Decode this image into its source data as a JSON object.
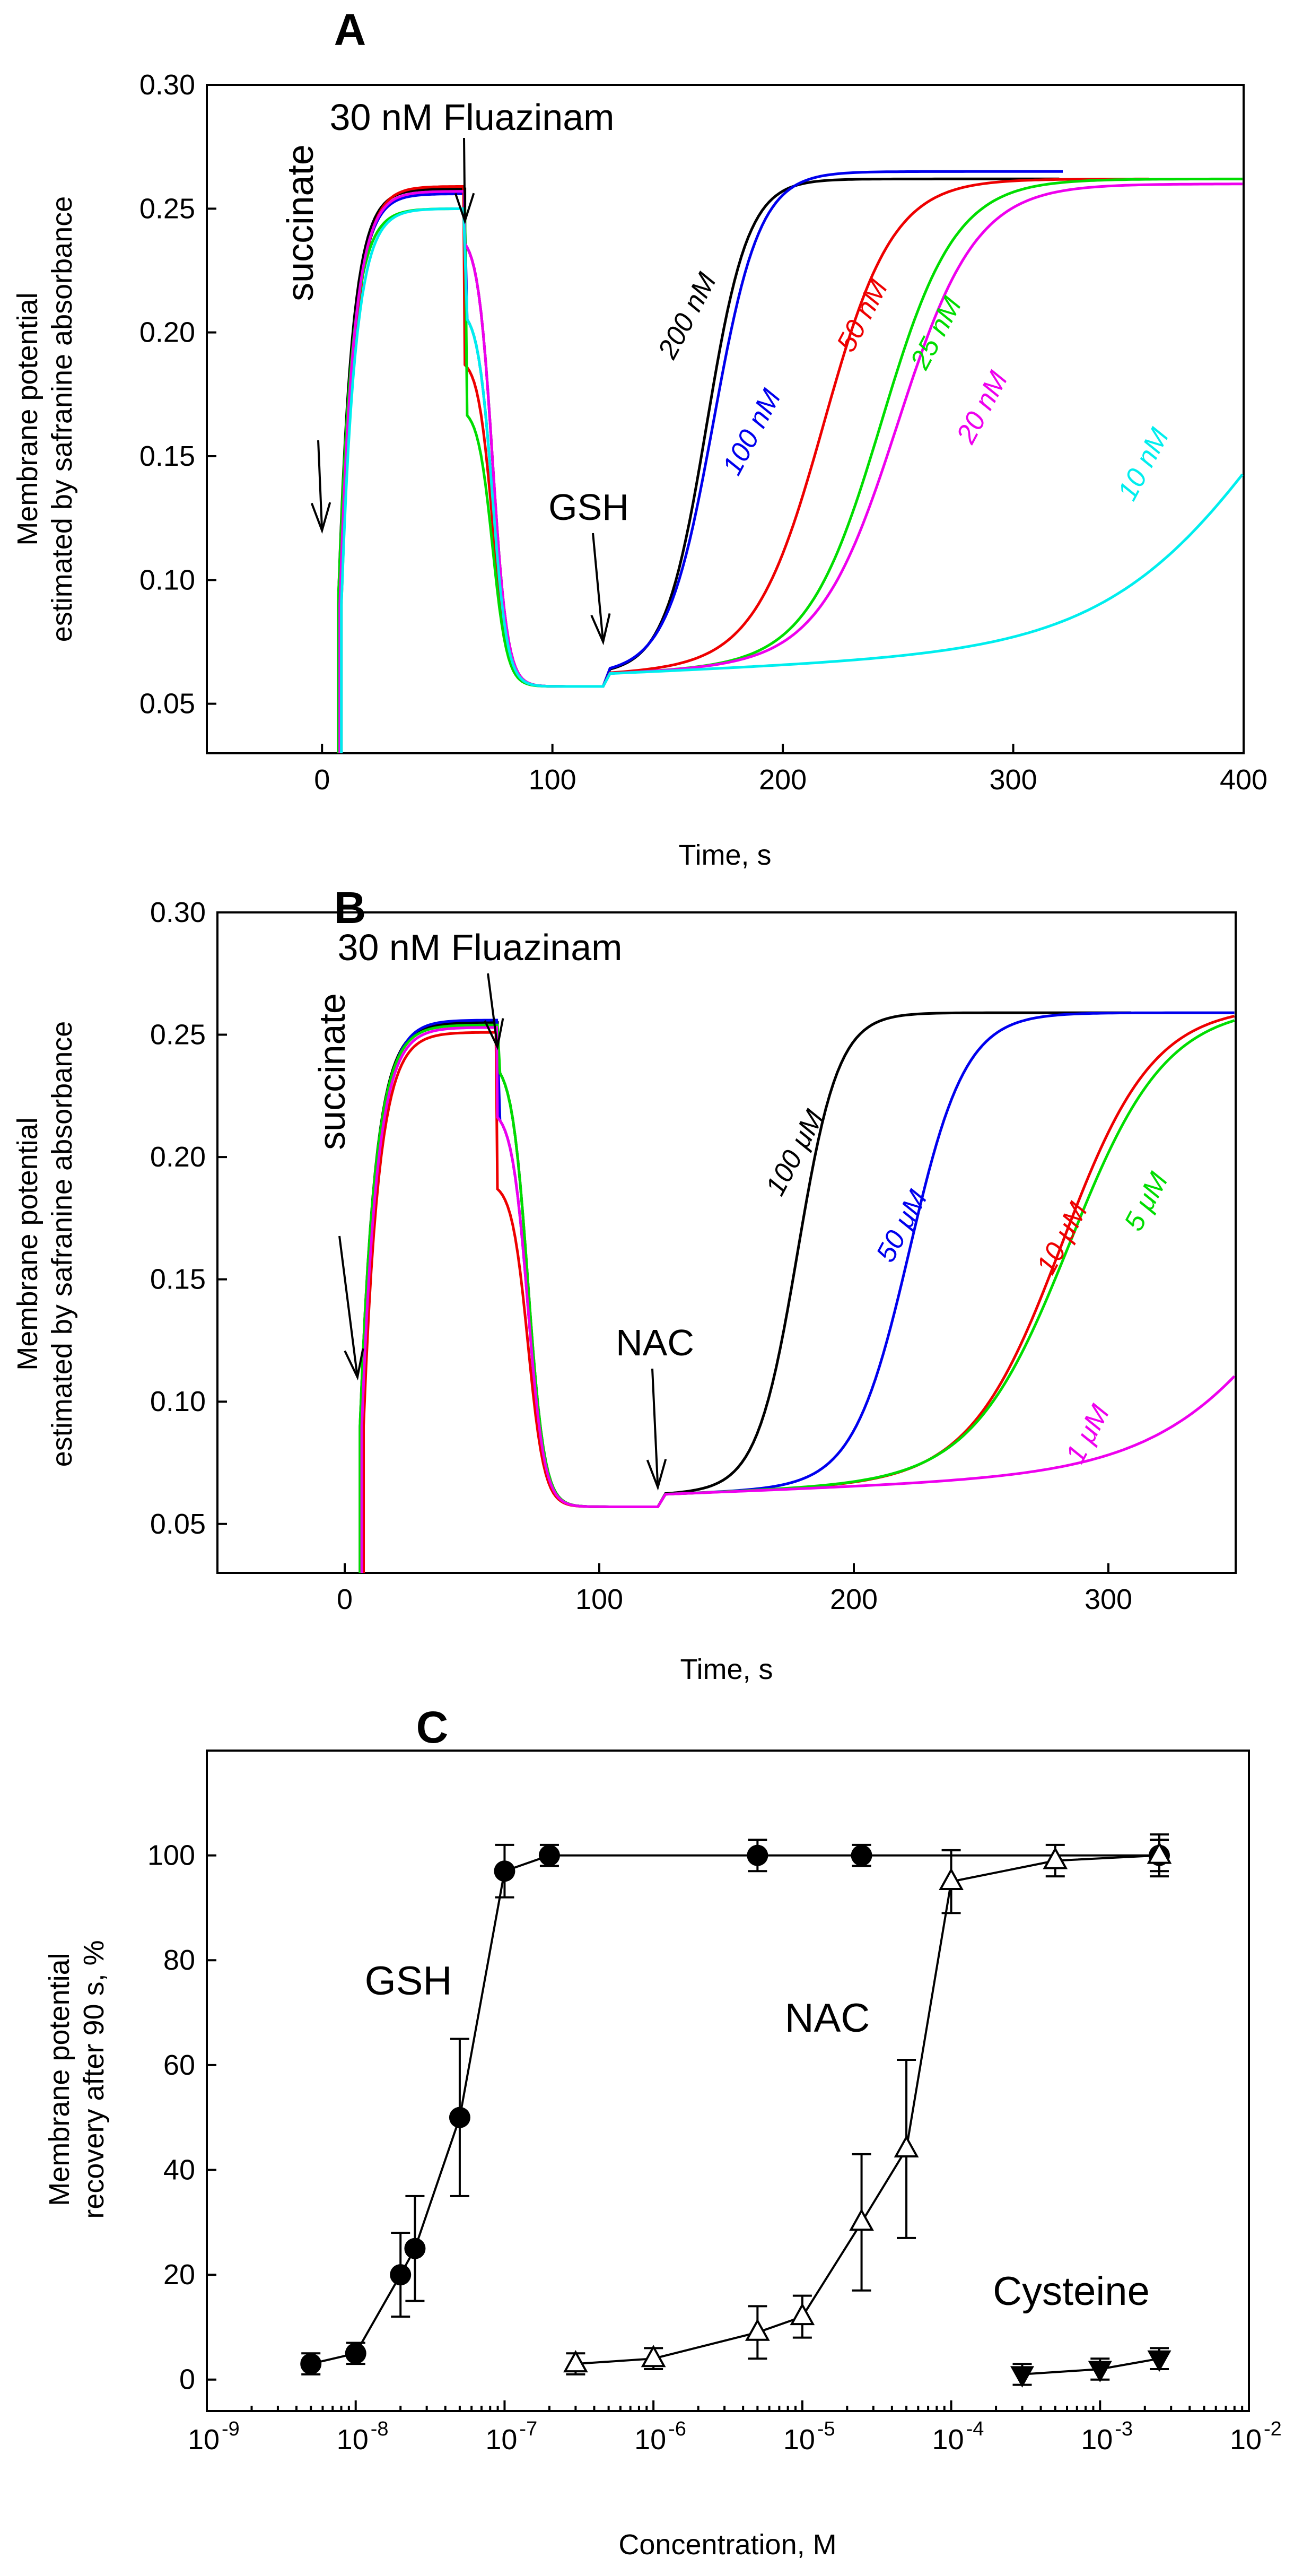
{
  "chart_data": [
    {
      "panel": "A",
      "type": "line",
      "xlabel": "Time, s",
      "ylabel_line1": "Membrane potential",
      "ylabel_line2": "estimated by safranine absorbance",
      "xlim": [
        -50,
        400
      ],
      "ylim": [
        0.03,
        0.3
      ],
      "xticks": [
        0,
        100,
        200,
        300,
        400
      ],
      "yticks": [
        0.05,
        0.1,
        0.15,
        0.2,
        0.25,
        0.3
      ],
      "annotations": [
        {
          "text": "succinate",
          "x": 0,
          "y": 0.12
        },
        {
          "text": "30 nM Fluazinam",
          "x": 62,
          "y": 0.245
        },
        {
          "text": "GSH",
          "x": 122,
          "y": 0.075
        }
      ],
      "series": [
        {
          "name": "200 nM",
          "color": "#000000",
          "t50": 167,
          "k": 9,
          "plateau": 0.262,
          "end": 320
        },
        {
          "name": "100 nM",
          "color": "#0000ee",
          "t50": 170,
          "k": 10,
          "plateau": 0.265,
          "end": 322
        },
        {
          "name": "50 nM",
          "color": "#ee0000",
          "t50": 218,
          "k": 15,
          "plateau": 0.262,
          "end": 360
        },
        {
          "name": "25 nM",
          "color": "#00dd00",
          "t50": 243,
          "k": 16,
          "plateau": 0.262,
          "end": 400
        },
        {
          "name": "20 nM",
          "color": "#ee00ee",
          "t50": 250,
          "k": 17,
          "plateau": 0.26,
          "end": 400
        },
        {
          "name": "10 nM",
          "color": "#00eeee",
          "t50": 420,
          "k": 38,
          "plateau": 0.262,
          "end": 400
        }
      ]
    },
    {
      "panel": "B",
      "type": "line",
      "xlabel": "Time, s",
      "ylabel_line1": "Membrane potential",
      "ylabel_line2": "estimated by safranine absorbance",
      "xlim": [
        -50,
        350
      ],
      "ylim": [
        0.03,
        0.3
      ],
      "xticks": [
        0,
        100,
        200,
        300
      ],
      "yticks": [
        0.05,
        0.1,
        0.15,
        0.2,
        0.25,
        0.3
      ],
      "annotations": [
        {
          "text": "succinate",
          "x": 5,
          "y": 0.11
        },
        {
          "text": "30 nM Fluazinam",
          "x": 60,
          "y": 0.245
        },
        {
          "text": "NAC",
          "x": 123,
          "y": 0.065
        }
      ],
      "series": [
        {
          "name": "100 μM",
          "color": "#000000",
          "t50": 178,
          "k": 8,
          "plateau": 0.259,
          "end": 310
        },
        {
          "name": "50 μM",
          "color": "#0000ee",
          "t50": 222,
          "k": 11,
          "plateau": 0.259,
          "end": 350
        },
        {
          "name": "10 μM",
          "color": "#ee0000",
          "t50": 282,
          "k": 18,
          "plateau": 0.262,
          "end": 350
        },
        {
          "name": "5 μM",
          "color": "#00dd00",
          "t50": 285,
          "k": 19,
          "plateau": 0.262,
          "end": 350
        },
        {
          "name": "1 μM",
          "color": "#ee00ee",
          "t50": 390,
          "k": 30,
          "plateau": 0.262,
          "end": 350
        }
      ]
    },
    {
      "panel": "C",
      "type": "scatter",
      "xlabel": "Concentration, M",
      "ylabel_line1": "Membrane potential",
      "ylabel_line2": "recovery after 90 s, %",
      "xscale": "log",
      "xlim_exp": [
        -9,
        -2
      ],
      "ylim": [
        -6,
        120
      ],
      "xticks_exp": [
        -9,
        -8,
        -7,
        -6,
        -5,
        -4,
        -3,
        -2
      ],
      "yticks": [
        0,
        20,
        40,
        60,
        80,
        100
      ],
      "series": [
        {
          "name": "GSH",
          "marker": "circle",
          "x": [
            5e-09,
            1e-08,
            2e-08,
            2.5e-08,
            5e-08,
            1e-07,
            2e-07,
            5e-06,
            2.5e-05,
            0.0025
          ],
          "y": [
            3,
            5,
            20,
            25,
            50,
            97,
            100,
            100,
            100,
            100
          ],
          "err": [
            2,
            2,
            8,
            10,
            15,
            5,
            2,
            3,
            2,
            3
          ]
        },
        {
          "name": "NAC",
          "marker": "triangle-up-open",
          "x": [
            3e-07,
            1e-06,
            5e-06,
            1e-05,
            2.5e-05,
            5e-05,
            0.0001,
            0.0005,
            0.0025
          ],
          "y": [
            3,
            4,
            9,
            12,
            30,
            44,
            95,
            99,
            100
          ],
          "err": [
            2,
            2,
            5,
            4,
            13,
            17,
            6,
            3,
            4
          ]
        },
        {
          "name": "Cysteine",
          "marker": "triangle-down",
          "x": [
            0.0003,
            0.001,
            0.0025
          ],
          "y": [
            1,
            2,
            4
          ],
          "err": [
            2,
            2,
            2
          ]
        }
      ]
    }
  ]
}
